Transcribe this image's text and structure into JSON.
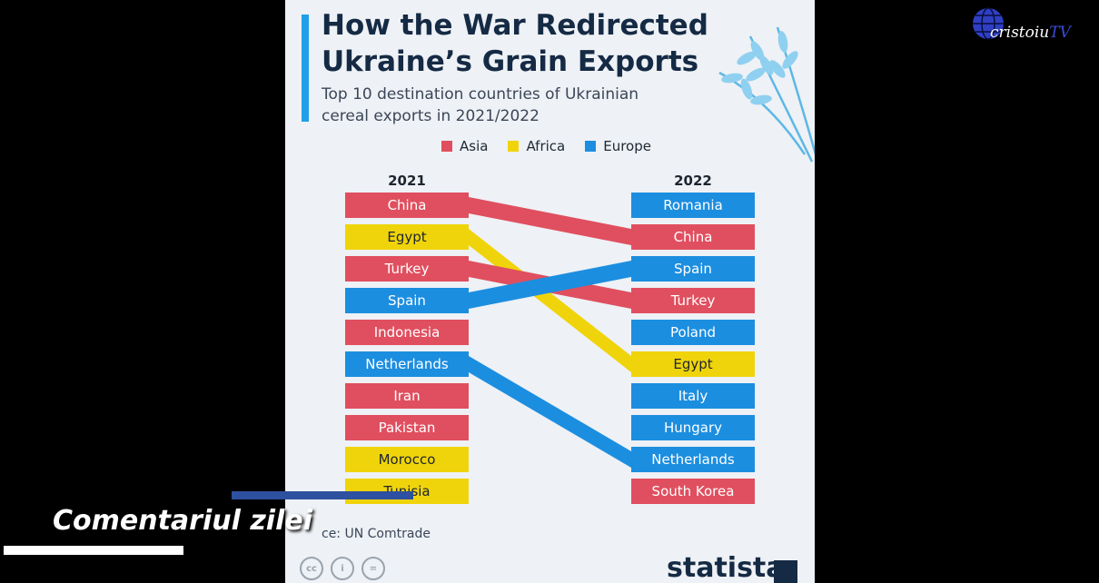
{
  "colors": {
    "asia": "#e04f5f",
    "africa": "#f0d40b",
    "europe": "#1c8ee0",
    "title": "#152a44"
  },
  "title": "How the War Redirected Ukraine’s Grain Exports",
  "subtitle": "Top 10 destination countries of Ukrainian cereal exports in 2021/2022",
  "legend": [
    {
      "label": "Asia",
      "color": "#e04f5f"
    },
    {
      "label": "Africa",
      "color": "#f0d40b"
    },
    {
      "label": "Europe",
      "color": "#1c8ee0"
    }
  ],
  "chart_data": {
    "type": "table",
    "title": "How the War Redirected Ukraine’s Grain Exports",
    "subtitle": "Top 10 destination countries of Ukrainian cereal exports in 2021/2022",
    "columns": [
      "2021",
      "2022"
    ],
    "regions": {
      "China": "Asia",
      "Egypt": "Africa",
      "Turkey": "Asia",
      "Spain": "Europe",
      "Indonesia": "Asia",
      "Netherlands": "Europe",
      "Iran": "Asia",
      "Pakistan": "Asia",
      "Morocco": "Africa",
      "Tunisia": "Africa",
      "Romania": "Europe",
      "Poland": "Europe",
      "Italy": "Europe",
      "Hungary": "Europe",
      "South Korea": "Asia"
    },
    "rank_2021": [
      "China",
      "Egypt",
      "Turkey",
      "Spain",
      "Indonesia",
      "Netherlands",
      "Iran",
      "Pakistan",
      "Morocco",
      "Tunisia"
    ],
    "rank_2022": [
      "Romania",
      "China",
      "Spain",
      "Turkey",
      "Poland",
      "Egypt",
      "Italy",
      "Hungary",
      "Netherlands",
      "South Korea"
    ],
    "source": "Source: UN Comtrade"
  },
  "source": "Source: UN Comtrade",
  "source_visible": "ce: UN Comtrade",
  "brand": "statista",
  "channel": {
    "name": "cristoiu",
    "suffix": "TV"
  },
  "caption": "Comentariul zilei"
}
